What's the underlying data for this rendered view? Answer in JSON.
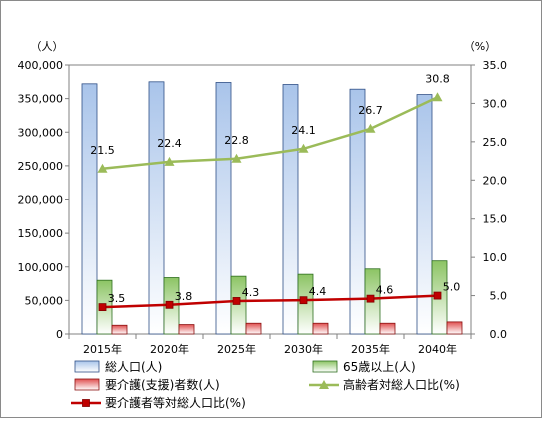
{
  "chart_data": {
    "type": "bar",
    "categories": [
      "2015年",
      "2020年",
      "2025年",
      "2030年",
      "2035年",
      "2040年"
    ],
    "y_left": {
      "unit": "（人）",
      "ylim": [
        0,
        400000
      ],
      "ticks": [
        "0",
        "50,000",
        "100,000",
        "150,000",
        "200,000",
        "250,000",
        "300,000",
        "350,000",
        "400,000"
      ]
    },
    "y_right": {
      "unit": "（%）",
      "ylim": [
        0,
        35
      ],
      "ticks": [
        "0.0",
        "5.0",
        "10.0",
        "15.0",
        "20.0",
        "25.0",
        "30.0",
        "35.0"
      ]
    },
    "grid": false,
    "legend_position": "bottom",
    "series": [
      {
        "name": "総人口(人)",
        "kind": "bar",
        "axis": "left",
        "values": [
          372000,
          375000,
          374000,
          371000,
          364000,
          356000
        ]
      },
      {
        "name": "65歳以上(人)",
        "kind": "bar",
        "axis": "left",
        "values": [
          80000,
          84000,
          86000,
          89000,
          97000,
          109000
        ]
      },
      {
        "name": "要介護(支援)者数(人)",
        "kind": "bar",
        "axis": "left",
        "values": [
          13000,
          14000,
          16000,
          16000,
          16000,
          18000
        ]
      },
      {
        "name": "高齢者対総人口比(%)",
        "kind": "line",
        "axis": "right",
        "values": [
          21.5,
          22.4,
          22.8,
          24.1,
          26.7,
          30.8
        ],
        "labels": [
          "21.5",
          "22.4",
          "22.8",
          "24.1",
          "26.7",
          "30.8"
        ]
      },
      {
        "name": "要介護者等対総人口比(%)",
        "kind": "line",
        "axis": "right",
        "values": [
          3.5,
          3.8,
          4.3,
          4.4,
          4.6,
          5.0
        ],
        "labels": [
          "3.5",
          "3.8",
          "4.3",
          "4.4",
          "4.6",
          "5.0"
        ]
      }
    ],
    "colors": {
      "total_fill_top": "#a9c4ea",
      "total_fill_bottom": "#ffffff",
      "total_border": "#2f4f86",
      "elderly_fill_top": "#8cc464",
      "elderly_fill_bottom": "#ffffff",
      "elderly_border": "#2e6e1e",
      "care_fill_top": "#e05050",
      "care_fill_bottom": "#ffffff",
      "care_border": "#8b1010",
      "elderly_ratio_line": "#9bbb59",
      "care_ratio_line": "#c00000"
    }
  }
}
